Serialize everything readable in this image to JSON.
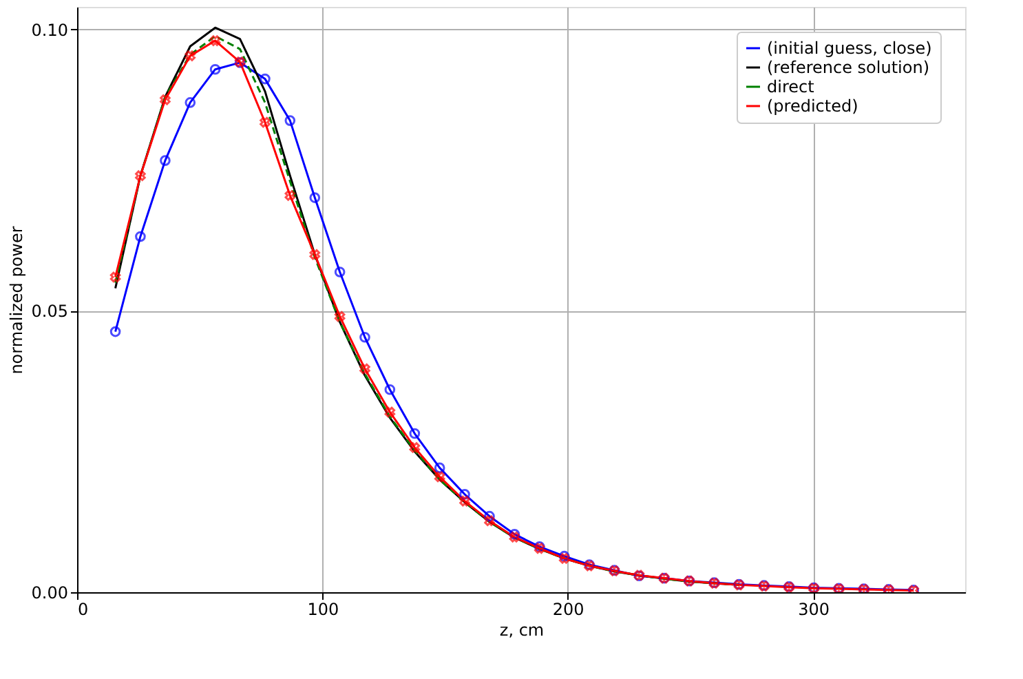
{
  "chart_data": {
    "type": "line",
    "xlabel": "z, cm",
    "ylabel": "normalized power",
    "x": [
      15.6,
      25.8,
      35.9,
      46.1,
      56.3,
      66.4,
      76.6,
      86.8,
      96.9,
      107.1,
      117.3,
      127.5,
      137.6,
      147.8,
      158.0,
      168.1,
      178.3,
      188.5,
      198.6,
      208.8,
      219.0,
      229.1,
      239.3,
      249.5,
      259.7,
      269.8,
      280.0,
      290.2,
      300.3,
      310.5,
      320.7,
      330.8,
      341.0
    ],
    "series": [
      {
        "name": "(initial guess, close)",
        "color": "#0000ff",
        "marker": "circle",
        "line_style": "solid",
        "values": [
          0.0463,
          0.0632,
          0.0767,
          0.087,
          0.0929,
          0.0941,
          0.0912,
          0.0838,
          0.0701,
          0.0569,
          0.0453,
          0.036,
          0.0282,
          0.0221,
          0.0174,
          0.0135,
          0.0103,
          0.0081,
          0.0064,
          0.0049,
          0.0039,
          0.0029,
          0.0025,
          0.002,
          0.0017,
          0.0014,
          0.0012,
          0.001,
          0.0008,
          0.0007,
          0.0006,
          0.0005,
          0.0004
        ]
      },
      {
        "name": "(reference solution)",
        "color": "#000000",
        "marker": "none",
        "line_style": "solid",
        "values": [
          0.054,
          0.074,
          0.088,
          0.097,
          0.1003,
          0.0983,
          0.089,
          0.074,
          0.06,
          0.048,
          0.0385,
          0.031,
          0.025,
          0.02,
          0.016,
          0.0125,
          0.0097,
          0.0077,
          0.006,
          0.0047,
          0.0037,
          0.003,
          0.0024,
          0.0019,
          0.0016,
          0.0013,
          null,
          null,
          null,
          null,
          null,
          null,
          null
        ]
      },
      {
        "name": "direct",
        "color": "#008000",
        "marker": "none",
        "line_style": "dashed",
        "values": [
          0.055,
          0.074,
          0.088,
          0.0955,
          0.0988,
          0.0965,
          0.087,
          0.073,
          0.0595,
          0.048,
          0.0388,
          0.0312,
          0.0252,
          0.02,
          0.016,
          0.0125,
          0.0097,
          0.0077,
          0.006,
          0.0047,
          0.0037,
          0.003,
          0.0024,
          0.0019,
          0.0016,
          0.0013,
          null,
          null,
          null,
          null,
          null,
          null,
          null
        ]
      },
      {
        "name": "(predicted)",
        "color": "#ff0000",
        "marker": "cross",
        "line_style": "solid",
        "values": [
          0.056,
          0.074,
          0.0875,
          0.0953,
          0.098,
          0.0942,
          0.0835,
          0.0705,
          0.06,
          0.049,
          0.0397,
          0.032,
          0.0257,
          0.0205,
          0.0162,
          0.0127,
          0.0098,
          0.0078,
          0.006,
          0.0047,
          0.0038,
          0.003,
          0.0025,
          0.002,
          0.0016,
          0.0013,
          0.0011,
          0.0009,
          0.0007,
          0.0006,
          0.0005,
          0.0004,
          0.0003
        ]
      }
    ],
    "xlim": [
      0,
      362
    ],
    "ylim": [
      0,
      0.104
    ],
    "xticks": [
      0,
      100,
      200,
      300
    ],
    "yticks": [
      {
        "value": 0,
        "label": "0.00"
      },
      {
        "value": 0.05,
        "label": "0.05"
      },
      {
        "value": 0.1,
        "label": "0.10"
      }
    ],
    "grid": true,
    "legend": "top right"
  }
}
